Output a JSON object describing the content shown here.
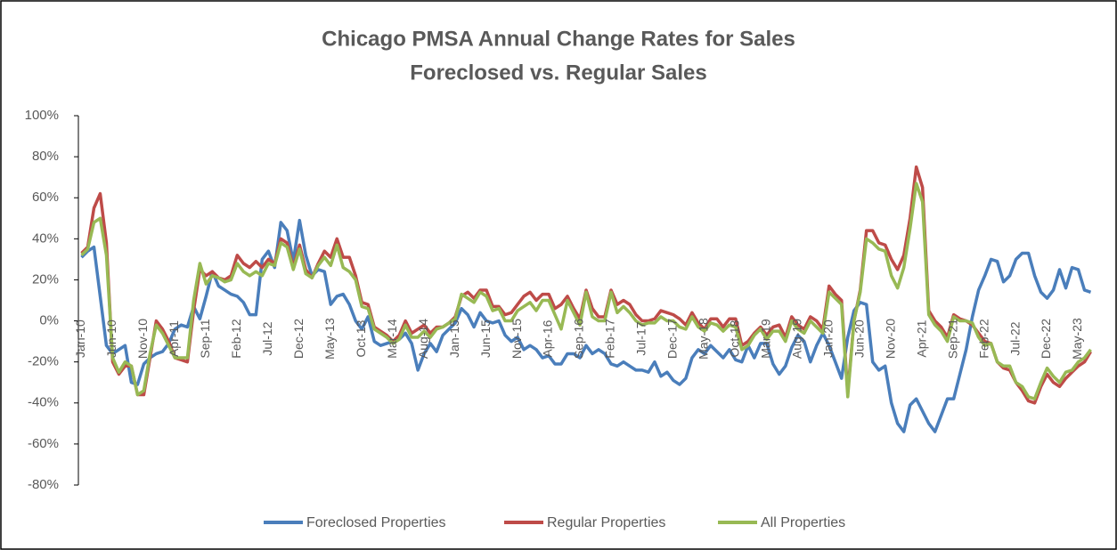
{
  "chart_data": {
    "type": "line",
    "title": "Chicago PMSA Annual Change Rates for Sales",
    "subtitle": "Foreclosed vs. Regular Sales",
    "categories": [
      "Jan-10",
      null,
      null,
      null,
      null,
      "Jun-10",
      null,
      null,
      null,
      null,
      "Nov-10",
      null,
      null,
      null,
      null,
      "Apr-11",
      null,
      null,
      null,
      null,
      "Sep-11",
      null,
      null,
      null,
      null,
      "Feb-12",
      null,
      null,
      null,
      null,
      "Jul-12",
      null,
      null,
      null,
      null,
      "Dec-12",
      null,
      null,
      null,
      null,
      "May-13",
      null,
      null,
      null,
      null,
      "Oct-13",
      null,
      null,
      null,
      null,
      "Mar-14",
      null,
      null,
      null,
      null,
      "Aug-14",
      null,
      null,
      null,
      null,
      "Jan-15",
      null,
      null,
      null,
      null,
      "Jun-15",
      null,
      null,
      null,
      null,
      "Nov-15",
      null,
      null,
      null,
      null,
      "Apr-16",
      null,
      null,
      null,
      null,
      "Sep-16",
      null,
      null,
      null,
      null,
      "Feb-17",
      null,
      null,
      null,
      null,
      "Jul-17",
      null,
      null,
      null,
      null,
      "Dec-17",
      null,
      null,
      null,
      null,
      "May-18",
      null,
      null,
      null,
      null,
      "Oct-18",
      null,
      null,
      null,
      null,
      "Mar-19",
      null,
      null,
      null,
      null,
      "Aug-19",
      null,
      null,
      null,
      null,
      "Jan-20",
      null,
      null,
      null,
      null,
      "Jun-20",
      null,
      null,
      null,
      null,
      "Nov-20",
      null,
      null,
      null,
      null,
      "Apr-21",
      null,
      null,
      null,
      null,
      "Sep-21",
      null,
      null,
      null,
      null,
      "Feb-22",
      null,
      null,
      null,
      null,
      "Jul-22",
      null,
      null,
      null,
      null,
      "Dec-22",
      null,
      null,
      null,
      null,
      "May-23",
      null,
      null
    ],
    "series": [
      {
        "name": "Foreclosed Properties",
        "color": "#4a7ebb",
        "values": [
          31,
          34,
          36,
          12,
          -12,
          -16,
          -14,
          -12,
          -30,
          -31,
          -21,
          -18,
          -16,
          -15,
          -11,
          -4,
          -2,
          -3,
          7,
          1,
          12,
          24,
          17,
          15,
          13,
          12,
          9,
          3,
          3,
          30,
          34,
          26,
          48,
          44,
          29,
          49,
          32,
          22,
          25,
          24,
          8,
          12,
          13,
          8,
          0,
          -4,
          2,
          -10,
          -12,
          -11,
          -10,
          -9,
          -6,
          -11,
          -24,
          -16,
          -11,
          -15,
          -7,
          -4,
          -1,
          6,
          3,
          -3,
          4,
          0,
          -1,
          0,
          -7,
          -10,
          -8,
          -14,
          -12,
          -14,
          -18,
          -17,
          -21,
          -21,
          -16,
          -16,
          -18,
          -12,
          -16,
          -14,
          -16,
          -21,
          -22,
          -20,
          -22,
          -24,
          -24,
          -25,
          -20,
          -27,
          -25,
          -29,
          -31,
          -28,
          -18,
          -14,
          -16,
          -12,
          -15,
          -18,
          -14,
          -19,
          -20,
          -12,
          -18,
          -11,
          -11,
          -21,
          -26,
          -22,
          -13,
          -7,
          -10,
          -20,
          -12,
          -6,
          -12,
          -20,
          -28,
          -8,
          5,
          9,
          8,
          -20,
          -24,
          -22,
          -40,
          -50,
          -54,
          -41,
          -38,
          -44,
          -50,
          -54,
          -46,
          -38,
          -38,
          -26,
          -14,
          2,
          15,
          22,
          30,
          29,
          19,
          22,
          30,
          33,
          33,
          22,
          14,
          11,
          15,
          25,
          16,
          26,
          25,
          15,
          14
        ]
      },
      {
        "name": "Regular Properties",
        "color": "#be4b48",
        "values": [
          33,
          36,
          55,
          62,
          38,
          -20,
          -26,
          -22,
          -22,
          -36,
          -36,
          -18,
          0,
          -4,
          -10,
          -18,
          -19,
          -20,
          5,
          25,
          22,
          24,
          21,
          20,
          22,
          32,
          28,
          26,
          29,
          26,
          30,
          28,
          40,
          38,
          26,
          37,
          25,
          21,
          28,
          34,
          31,
          40,
          31,
          31,
          22,
          9,
          8,
          -3,
          -5,
          -7,
          -10,
          -7,
          0,
          -6,
          -4,
          -2,
          -6,
          -3,
          -3,
          -1,
          2,
          12,
          14,
          11,
          15,
          15,
          7,
          7,
          3,
          4,
          8,
          12,
          14,
          10,
          13,
          13,
          6,
          8,
          12,
          6,
          1,
          15,
          6,
          2,
          2,
          15,
          8,
          10,
          8,
          3,
          0,
          0,
          1,
          5,
          4,
          3,
          1,
          -2,
          4,
          -1,
          -4,
          1,
          1,
          -3,
          1,
          1,
          -12,
          -10,
          -6,
          -3,
          -7,
          -3,
          -2,
          -8,
          2,
          -2,
          -4,
          2,
          0,
          -4,
          17,
          13,
          10,
          -35,
          0,
          15,
          44,
          44,
          38,
          37,
          30,
          25,
          32,
          50,
          75,
          65,
          5,
          0,
          -3,
          -8,
          3,
          1,
          0,
          -2,
          -6,
          -10,
          -11,
          -20,
          -23,
          -24,
          -30,
          -34,
          -39,
          -40,
          -32,
          -26,
          -30,
          -32,
          -28,
          -25,
          -22,
          -20,
          -15
        ]
      },
      {
        "name": "All Properties",
        "color": "#98b954",
        "values": [
          32,
          35,
          48,
          50,
          32,
          -18,
          -25,
          -20,
          -22,
          -36,
          -34,
          -16,
          -2,
          -6,
          -12,
          -18,
          -18,
          -18,
          10,
          28,
          18,
          22,
          21,
          19,
          20,
          28,
          24,
          22,
          24,
          22,
          28,
          27,
          38,
          36,
          25,
          35,
          23,
          21,
          27,
          31,
          27,
          37,
          26,
          24,
          20,
          7,
          6,
          -4,
          -6,
          -8,
          -11,
          -9,
          -2,
          -8,
          -8,
          -5,
          -8,
          -4,
          -3,
          -1,
          1,
          13,
          11,
          9,
          14,
          12,
          5,
          6,
          0,
          0,
          5,
          7,
          9,
          5,
          10,
          10,
          3,
          -4,
          10,
          4,
          -2,
          14,
          2,
          0,
          0,
          14,
          4,
          7,
          4,
          0,
          -2,
          -1,
          -1,
          2,
          0,
          0,
          -3,
          -4,
          2,
          -3,
          -5,
          -1,
          -2,
          -5,
          -2,
          -3,
          -14,
          -12,
          -7,
          -4,
          -9,
          -5,
          -5,
          -10,
          0,
          -4,
          -6,
          0,
          -3,
          -6,
          14,
          11,
          8,
          -37,
          0,
          14,
          40,
          38,
          35,
          34,
          22,
          16,
          26,
          45,
          67,
          58,
          3,
          -2,
          -5,
          -10,
          2,
          0,
          0,
          -1,
          -8,
          -12,
          -11,
          -20,
          -22,
          -22,
          -30,
          -32,
          -37,
          -38,
          -30,
          -23,
          -27,
          -30,
          -25,
          -24,
          -20,
          -18,
          -14
        ]
      }
    ],
    "ylim": [
      -80,
      100
    ],
    "yticks": [
      {
        "value": -80,
        "label": "-80%"
      },
      {
        "value": -60,
        "label": "-60%"
      },
      {
        "value": -40,
        "label": "-40%"
      },
      {
        "value": -20,
        "label": "-20%"
      },
      {
        "value": 0,
        "label": "0%"
      },
      {
        "value": 20,
        "label": "20%"
      },
      {
        "value": 40,
        "label": "40%"
      },
      {
        "value": 60,
        "label": "60%"
      },
      {
        "value": 80,
        "label": "80%"
      },
      {
        "value": 100,
        "label": "100%"
      }
    ],
    "grid": false,
    "legend": "bottom"
  }
}
